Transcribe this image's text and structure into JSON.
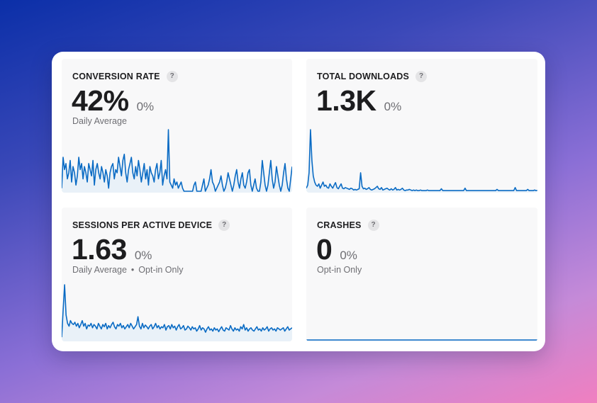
{
  "metrics": {
    "conversion": {
      "title": "CONVERSION RATE",
      "help": "?",
      "value": "42%",
      "change": "0%",
      "subtitle": "Daily Average"
    },
    "downloads": {
      "title": "TOTAL DOWNLOADS",
      "help": "?",
      "value": "1.3K",
      "change": "0%"
    },
    "sessions": {
      "title": "SESSIONS PER ACTIVE DEVICE",
      "help": "?",
      "value": "1.63",
      "change": "0%",
      "subtitle": "Daily Average",
      "subtitle_separator": "•",
      "subtitle_extra": "Opt-in Only"
    },
    "crashes": {
      "title": "CRASHES",
      "help": "?",
      "value": "0",
      "change": "0%",
      "subtitle": "Opt-in Only"
    }
  },
  "colors": {
    "line": "#0a6bc4",
    "fill": "#dcebf8",
    "panel_bg": "#f8f8f9"
  },
  "sparklines": {
    "conversion": [
      0.05,
      0.55,
      0.35,
      0.45,
      0.2,
      0.3,
      0.5,
      0.15,
      0.4,
      0.3,
      0.1,
      0.25,
      0.55,
      0.35,
      0.45,
      0.2,
      0.4,
      0.3,
      0.15,
      0.45,
      0.35,
      0.25,
      0.5,
      0.1,
      0.35,
      0.45,
      0.3,
      0.2,
      0.4,
      0.3,
      0.15,
      0.35,
      0.25,
      0.05,
      0.3,
      0.4,
      0.45,
      0.2,
      0.35,
      0.3,
      0.55,
      0.4,
      0.25,
      0.5,
      0.6,
      0.3,
      0.15,
      0.35,
      0.45,
      0.55,
      0.3,
      0.2,
      0.4,
      0.25,
      0.5,
      0.35,
      0.15,
      0.3,
      0.45,
      0.2,
      0.35,
      0.1,
      0.4,
      0.3,
      0.25,
      0.15,
      0.35,
      0.45,
      0.2,
      0.3,
      0.5,
      0.1,
      0.25,
      0.35,
      0.2,
      1.0,
      0.15,
      0.1,
      0.05,
      0.2,
      0.1,
      0.15,
      0.05,
      0.1,
      0.15,
      0.05,
      0.0,
      0.0,
      0.0,
      0.0,
      0.0,
      0.0,
      0.0,
      0.1,
      0.15,
      0.0,
      0.0,
      0.0,
      0.0,
      0.1,
      0.2,
      0.0,
      0.05,
      0.1,
      0.2,
      0.35,
      0.15,
      0.1,
      0.0,
      0.05,
      0.1,
      0.15,
      0.25,
      0.1,
      0.0,
      0.05,
      0.15,
      0.3,
      0.2,
      0.1,
      0.0,
      0.1,
      0.25,
      0.35,
      0.15,
      0.05,
      0.2,
      0.3,
      0.1,
      0.05,
      0.15,
      0.3,
      0.35,
      0.1,
      0.0,
      0.1,
      0.2,
      0.05,
      0.0,
      0.0,
      0.15,
      0.5,
      0.3,
      0.1,
      0.0,
      0.1,
      0.3,
      0.5,
      0.2,
      0.05,
      0.15,
      0.4,
      0.25,
      0.1,
      0.0,
      0.1,
      0.3,
      0.45,
      0.2,
      0.05,
      0.0,
      0.2,
      0.4
    ],
    "downloads": [
      0.05,
      0.1,
      0.3,
      1.0,
      0.5,
      0.25,
      0.15,
      0.1,
      0.08,
      0.12,
      0.05,
      0.1,
      0.15,
      0.08,
      0.1,
      0.06,
      0.05,
      0.12,
      0.08,
      0.05,
      0.1,
      0.14,
      0.06,
      0.04,
      0.08,
      0.12,
      0.05,
      0.04,
      0.06,
      0.05,
      0.04,
      0.03,
      0.05,
      0.04,
      0.02,
      0.03,
      0.02,
      0.03,
      0.04,
      0.3,
      0.08,
      0.04,
      0.05,
      0.03,
      0.04,
      0.06,
      0.03,
      0.02,
      0.03,
      0.04,
      0.06,
      0.08,
      0.04,
      0.03,
      0.06,
      0.02,
      0.03,
      0.04,
      0.05,
      0.03,
      0.02,
      0.04,
      0.02,
      0.03,
      0.06,
      0.02,
      0.03,
      0.02,
      0.03,
      0.05,
      0.02,
      0.01,
      0.02,
      0.02,
      0.03,
      0.02,
      0.01,
      0.02,
      0.01,
      0.02,
      0.01,
      0.01,
      0.02,
      0.01,
      0.01,
      0.01,
      0.01,
      0.02,
      0.01,
      0.01,
      0.01,
      0.01,
      0.01,
      0.01,
      0.01,
      0.01,
      0.01,
      0.04,
      0.01,
      0.01,
      0.01,
      0.01,
      0.01,
      0.01,
      0.01,
      0.01,
      0.01,
      0.01,
      0.01,
      0.01,
      0.01,
      0.01,
      0.01,
      0.01,
      0.05,
      0.01,
      0.01,
      0.01,
      0.01,
      0.01,
      0.01,
      0.01,
      0.01,
      0.01,
      0.01,
      0.01,
      0.01,
      0.01,
      0.01,
      0.01,
      0.01,
      0.01,
      0.01,
      0.01,
      0.01,
      0.01,
      0.01,
      0.03,
      0.01,
      0.01,
      0.01,
      0.01,
      0.01,
      0.01,
      0.01,
      0.01,
      0.01,
      0.01,
      0.01,
      0.01,
      0.06,
      0.01,
      0.01,
      0.01,
      0.01,
      0.01,
      0.01,
      0.01,
      0.01,
      0.03,
      0.01,
      0.01,
      0.01,
      0.01,
      0.02,
      0.01,
      0.01
    ],
    "sessions": [
      0.05,
      0.55,
      1.0,
      0.45,
      0.3,
      0.25,
      0.35,
      0.3,
      0.28,
      0.32,
      0.25,
      0.3,
      0.22,
      0.28,
      0.35,
      0.25,
      0.3,
      0.2,
      0.27,
      0.25,
      0.3,
      0.22,
      0.28,
      0.25,
      0.2,
      0.3,
      0.25,
      0.2,
      0.28,
      0.24,
      0.3,
      0.2,
      0.26,
      0.22,
      0.28,
      0.32,
      0.24,
      0.2,
      0.28,
      0.25,
      0.3,
      0.22,
      0.26,
      0.2,
      0.24,
      0.28,
      0.22,
      0.3,
      0.25,
      0.2,
      0.24,
      0.28,
      0.42,
      0.25,
      0.2,
      0.3,
      0.22,
      0.27,
      0.24,
      0.2,
      0.25,
      0.28,
      0.2,
      0.24,
      0.3,
      0.22,
      0.26,
      0.2,
      0.24,
      0.22,
      0.28,
      0.18,
      0.24,
      0.26,
      0.2,
      0.28,
      0.22,
      0.25,
      0.18,
      0.24,
      0.28,
      0.2,
      0.22,
      0.26,
      0.18,
      0.2,
      0.25,
      0.22,
      0.18,
      0.24,
      0.2,
      0.22,
      0.16,
      0.2,
      0.26,
      0.18,
      0.22,
      0.2,
      0.14,
      0.2,
      0.24,
      0.18,
      0.2,
      0.16,
      0.22,
      0.18,
      0.2,
      0.15,
      0.2,
      0.24,
      0.18,
      0.16,
      0.22,
      0.2,
      0.18,
      0.26,
      0.2,
      0.16,
      0.22,
      0.18,
      0.2,
      0.16,
      0.24,
      0.2,
      0.28,
      0.18,
      0.22,
      0.16,
      0.2,
      0.22,
      0.18,
      0.16,
      0.2,
      0.24,
      0.18,
      0.2,
      0.16,
      0.22,
      0.18,
      0.2,
      0.24,
      0.16,
      0.2,
      0.22,
      0.18,
      0.2,
      0.16,
      0.22,
      0.2,
      0.18,
      0.2,
      0.22,
      0.16,
      0.2,
      0.24,
      0.18,
      0.2,
      0.22
    ],
    "crashes": [
      0,
      0,
      0,
      0,
      0,
      0,
      0,
      0,
      0,
      0,
      0,
      0,
      0,
      0,
      0,
      0,
      0,
      0,
      0,
      0,
      0,
      0,
      0,
      0,
      0,
      0,
      0,
      0,
      0,
      0,
      0,
      0,
      0,
      0,
      0,
      0,
      0,
      0,
      0,
      0,
      0,
      0,
      0,
      0,
      0,
      0,
      0,
      0,
      0,
      0,
      0,
      0,
      0,
      0,
      0,
      0,
      0,
      0,
      0,
      0,
      0,
      0,
      0,
      0,
      0,
      0,
      0,
      0,
      0,
      0,
      0,
      0,
      0,
      0,
      0,
      0,
      0,
      0,
      0,
      0
    ]
  }
}
